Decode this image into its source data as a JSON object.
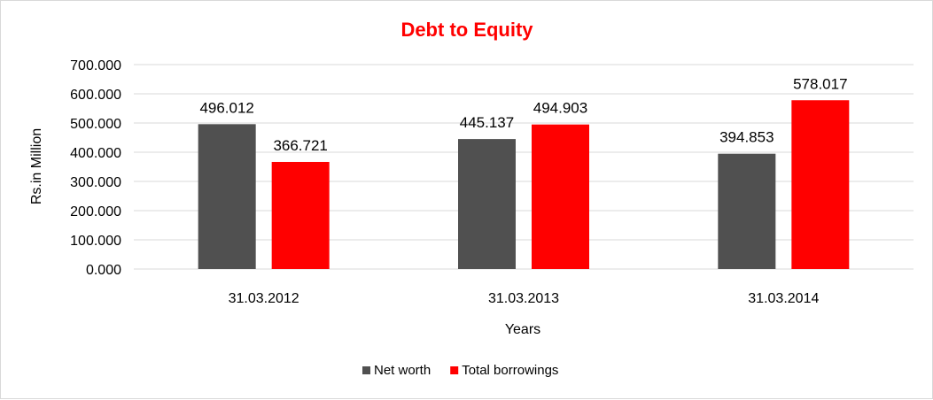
{
  "chart_data": {
    "type": "bar",
    "title": "Debt to Equity",
    "xlabel": "Years",
    "ylabel": "Rs.in Million",
    "categories": [
      "31.03.2012",
      "31.03.2013",
      "31.03.2014"
    ],
    "series": [
      {
        "name": "Net worth",
        "values": [
          496.012,
          445.137,
          394.853
        ],
        "labels": [
          "496.012",
          "445.137",
          "394.853"
        ],
        "color": "#505050"
      },
      {
        "name": "Total borrowings",
        "values": [
          366.721,
          494.903,
          578.017
        ],
        "labels": [
          "366.721",
          "494.903",
          "578.017"
        ],
        "color": "#ff0000"
      }
    ],
    "ylim": [
      0,
      700
    ],
    "yticks": [
      "0.000",
      "100.000",
      "200.000",
      "300.000",
      "400.000",
      "500.000",
      "600.000",
      "700.000"
    ],
    "grid": true,
    "legend": "bottom",
    "title_color": "#ff0000",
    "gridline_color": "#d9d9d9"
  }
}
